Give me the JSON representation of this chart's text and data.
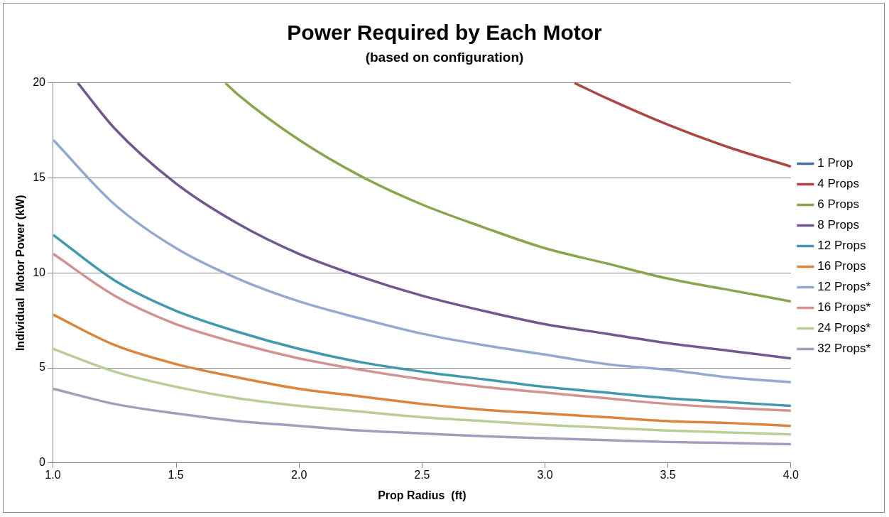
{
  "chart_data": {
    "type": "line",
    "title": "Power Required by Each Motor",
    "subtitle": "(based on configuration)",
    "xlabel": "Prop Radius  (ft)",
    "ylabel": "Individual  Motor Power (kW)",
    "x": [
      1,
      1.25,
      1.5,
      1.75,
      2,
      2.25,
      2.5,
      2.75,
      3,
      3.25,
      3.5,
      3.75,
      4
    ],
    "xlim": [
      1,
      4
    ],
    "xticks": [
      {
        "value": 1,
        "label": "1.0"
      },
      {
        "value": 1.5,
        "label": "1.5"
      },
      {
        "value": 2,
        "label": "2.0"
      },
      {
        "value": 2.5,
        "label": "2.5"
      },
      {
        "value": 3,
        "label": "3.0"
      },
      {
        "value": 3.5,
        "label": "3.5"
      },
      {
        "value": 4,
        "label": "4.0"
      }
    ],
    "ylim": [
      0,
      20
    ],
    "yticks": [
      0,
      5,
      10,
      15,
      20
    ],
    "grid": "y",
    "legend": "right",
    "marker": "none",
    "line_style": "solid",
    "series": [
      {
        "name": "1 Prop",
        "color": "#4572a7",
        "values": [
          null,
          null,
          null,
          null,
          null,
          null,
          null,
          null,
          null,
          null,
          null,
          null,
          null
        ]
      },
      {
        "name": "4 Props",
        "color": "#aa4643",
        "x": [
          3.12,
          3.25,
          3.5,
          3.75,
          4
        ],
        "values": [
          20,
          19.2,
          17.8,
          16.6,
          15.6
        ]
      },
      {
        "name": "6 Props",
        "color": "#89a54e",
        "x": [
          1.7,
          1.75,
          2,
          2.25,
          2.5,
          2.75,
          3,
          3.25,
          3.5,
          3.75,
          4
        ],
        "values": [
          20,
          19.4,
          17,
          15.1,
          13.6,
          12.4,
          11.3,
          10.5,
          9.7,
          9.1,
          8.5
        ]
      },
      {
        "name": "8 Props",
        "color": "#71588f",
        "x": [
          1.1,
          1.25,
          1.5,
          1.75,
          2,
          2.25,
          2.5,
          2.75,
          3,
          3.25,
          3.5,
          3.75,
          4
        ],
        "values": [
          20,
          17.6,
          14.7,
          12.6,
          11,
          9.8,
          8.8,
          8,
          7.3,
          6.8,
          6.3,
          5.9,
          5.5
        ]
      },
      {
        "name": "12 Props",
        "color": "#4198af",
        "values": [
          12,
          9.6,
          8,
          6.9,
          6,
          5.3,
          4.8,
          4.4,
          4,
          3.7,
          3.4,
          3.2,
          3
        ]
      },
      {
        "name": "16 Props",
        "color": "#db843d",
        "values": [
          7.8,
          6.2,
          5.2,
          4.5,
          3.9,
          3.5,
          3.1,
          2.8,
          2.6,
          2.4,
          2.2,
          2.1,
          1.95
        ]
      },
      {
        "name": "12 Props*",
        "color": "#93a9cf",
        "values": [
          17,
          13.6,
          11.3,
          9.7,
          8.5,
          7.6,
          6.8,
          6.2,
          5.7,
          5.2,
          4.9,
          4.5,
          4.25
        ]
      },
      {
        "name": "16 Props*",
        "color": "#d19392",
        "values": [
          11,
          8.8,
          7.3,
          6.3,
          5.5,
          4.9,
          4.4,
          4,
          3.7,
          3.4,
          3.1,
          2.9,
          2.75
        ]
      },
      {
        "name": "24 Props*",
        "color": "#b9cd96",
        "values": [
          6,
          4.8,
          4,
          3.4,
          3,
          2.7,
          2.4,
          2.2,
          2,
          1.85,
          1.7,
          1.6,
          1.5
        ]
      },
      {
        "name": "32 Props*",
        "color": "#a99bbd",
        "values": [
          3.9,
          3.1,
          2.6,
          2.2,
          1.95,
          1.7,
          1.55,
          1.4,
          1.3,
          1.2,
          1.1,
          1.05,
          0.98
        ]
      }
    ]
  }
}
